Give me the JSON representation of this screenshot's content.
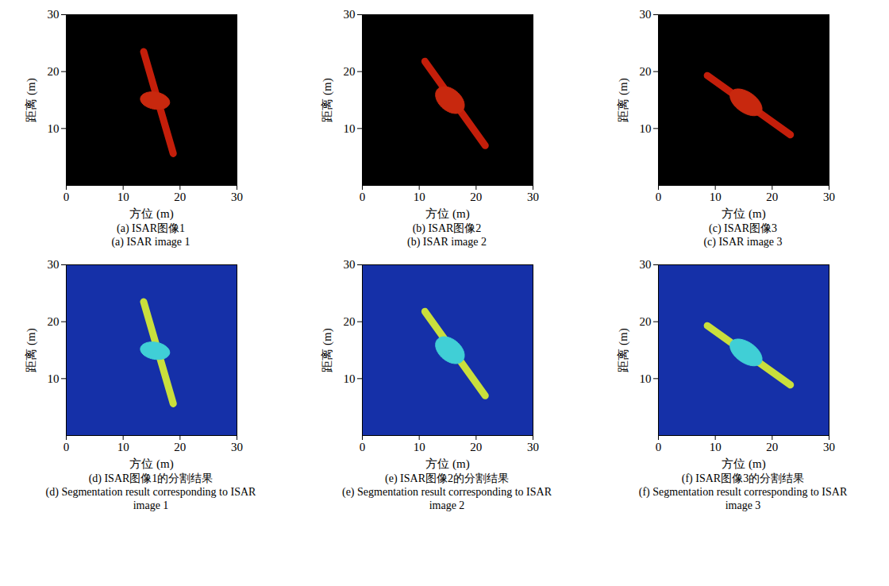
{
  "chart_data": [
    {
      "type": "image",
      "title": "(a) ISAR图像1",
      "subtitle": "(a) ISAR image 1",
      "xlabel": "方位 (m)",
      "ylabel": "距离 (m)",
      "xlim": [
        0,
        30
      ],
      "ylim": [
        0,
        30
      ],
      "xticks": [
        0,
        10,
        20,
        30
      ],
      "yticks": [
        10,
        20,
        30
      ],
      "colors": [
        "#000000",
        "#c41e0a",
        "#c8280e"
      ],
      "solar_panel": {
        "x": [
          13.6,
          18.8
        ],
        "y": [
          23.5,
          5.6
        ]
      },
      "body": {
        "x": 15.6,
        "y": 14.9,
        "rx": 2.6,
        "ry": 1.5,
        "angle": -10
      }
    },
    {
      "type": "image",
      "title": "(b) ISAR图像2",
      "subtitle": "(b) ISAR image 2",
      "xlabel": "方位 (m)",
      "ylabel": "距离 (m)",
      "xlim": [
        0,
        30
      ],
      "ylim": [
        0,
        30
      ],
      "xticks": [
        0,
        10,
        20,
        30
      ],
      "yticks": [
        10,
        20,
        30
      ],
      "colors": [
        "#000000",
        "#c41e0a",
        "#c8280e"
      ],
      "solar_panel": {
        "x": [
          11.0,
          21.6
        ],
        "y": [
          21.8,
          7.0
        ]
      },
      "body": {
        "x": 15.4,
        "y": 15.0,
        "rx": 2.9,
        "ry": 1.9,
        "angle": -40
      }
    },
    {
      "type": "image",
      "title": "(c) ISAR图像3",
      "subtitle": "(c) ISAR image 3",
      "xlabel": "方位 (m)",
      "ylabel": "距离 (m)",
      "xlim": [
        0,
        30
      ],
      "ylim": [
        0,
        30
      ],
      "xticks": [
        0,
        10,
        20,
        30
      ],
      "yticks": [
        10,
        20,
        30
      ],
      "colors": [
        "#000000",
        "#c41e0a",
        "#c8280e"
      ],
      "solar_panel": {
        "x": [
          8.6,
          23.2
        ],
        "y": [
          19.3,
          8.9
        ]
      },
      "body": {
        "x": 15.4,
        "y": 14.6,
        "rx": 3.2,
        "ry": 1.8,
        "angle": -35
      }
    },
    {
      "type": "image",
      "title": "(d) ISAR图像1的分割结果",
      "subtitle": "(d) Segmentation result corresponding to ISAR image 1",
      "xlabel": "方位 (m)",
      "ylabel": "距离 (m)",
      "xlim": [
        0,
        30
      ],
      "ylim": [
        0,
        30
      ],
      "xticks": [
        0,
        10,
        20,
        30
      ],
      "yticks": [
        10,
        20,
        30
      ],
      "colors": [
        "#1530a8",
        "#c9df3c",
        "#40cfd6"
      ],
      "solar_panel": {
        "x": [
          13.6,
          18.8
        ],
        "y": [
          23.5,
          5.6
        ]
      },
      "body": {
        "x": 15.6,
        "y": 14.9,
        "rx": 2.6,
        "ry": 1.5,
        "angle": -10
      }
    },
    {
      "type": "image",
      "title": "(e) ISAR图像2的分割结果",
      "subtitle": "(e) Segmentation result corresponding to ISAR image 2",
      "xlabel": "方位 (m)",
      "ylabel": "距离 (m)",
      "xlim": [
        0,
        30
      ],
      "ylim": [
        0,
        30
      ],
      "xticks": [
        0,
        10,
        20,
        30
      ],
      "yticks": [
        10,
        20,
        30
      ],
      "colors": [
        "#1530a8",
        "#c9df3c",
        "#40cfd6"
      ],
      "solar_panel": {
        "x": [
          11.0,
          21.6
        ],
        "y": [
          21.8,
          7.0
        ]
      },
      "body": {
        "x": 15.4,
        "y": 15.0,
        "rx": 2.9,
        "ry": 1.9,
        "angle": -40
      }
    },
    {
      "type": "image",
      "title": "(f) ISAR图像3的分割结果",
      "subtitle": "(f) Segmentation result corresponding to ISAR image 3",
      "xlabel": "方位 (m)",
      "ylabel": "距离 (m)",
      "xlim": [
        0,
        30
      ],
      "ylim": [
        0,
        30
      ],
      "xticks": [
        0,
        10,
        20,
        30
      ],
      "yticks": [
        10,
        20,
        30
      ],
      "colors": [
        "#1530a8",
        "#c9df3c",
        "#40cfd6"
      ],
      "solar_panel": {
        "x": [
          8.6,
          23.2
        ],
        "y": [
          19.3,
          8.9
        ]
      },
      "body": {
        "x": 15.4,
        "y": 14.6,
        "rx": 3.2,
        "ry": 1.8,
        "angle": -35
      }
    }
  ]
}
